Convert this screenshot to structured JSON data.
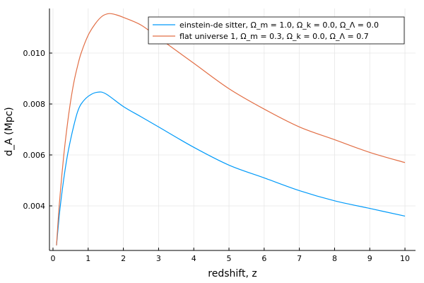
{
  "chart_data": {
    "type": "line",
    "title": "",
    "xlabel": "redshift, z",
    "ylabel": "d_A (Mpc)",
    "xlim": [
      -0.1,
      10.3
    ],
    "ylim": [
      0.00225,
      0.01175
    ],
    "xticks": [
      0,
      1,
      2,
      3,
      4,
      5,
      6,
      7,
      8,
      9,
      10
    ],
    "xtick_labels": [
      "0",
      "1",
      "2",
      "3",
      "4",
      "5",
      "6",
      "7",
      "8",
      "9",
      "10"
    ],
    "yticks": [
      0.004,
      0.006,
      0.008,
      0.01
    ],
    "ytick_labels": [
      "0.004",
      "0.006",
      "0.008",
      "0.010"
    ],
    "grid": true,
    "legend_position": "top-right",
    "series": [
      {
        "name": "einstein-de sitter, Ω_m = 1.0, Ω_k = 0.0, Ω_Λ = 0.0",
        "color": "#009af9",
        "x": [
          0.1,
          0.15,
          0.2,
          0.3,
          0.4,
          0.5,
          0.6,
          0.7,
          0.8,
          1.0,
          1.25,
          1.5,
          2.0,
          2.5,
          3.0,
          4.0,
          5.0,
          6.0,
          7.0,
          8.0,
          9.0,
          10.0
        ],
        "y": [
          0.00245,
          0.0032,
          0.0039,
          0.005,
          0.0059,
          0.0066,
          0.0072,
          0.0077,
          0.008,
          0.0083,
          0.00846,
          0.0084,
          0.0079,
          0.0075,
          0.0071,
          0.0063,
          0.0056,
          0.0051,
          0.0046,
          0.0042,
          0.0039,
          0.0036
        ]
      },
      {
        "name": "flat universe 1, Ω_m = 0.3, Ω_k = 0.0, Ω_Λ = 0.7",
        "color": "#e26f46",
        "x": [
          0.1,
          0.15,
          0.2,
          0.3,
          0.4,
          0.5,
          0.6,
          0.7,
          0.8,
          1.0,
          1.2,
          1.4,
          1.6,
          1.8,
          2.0,
          2.5,
          3.0,
          4.0,
          5.0,
          6.0,
          7.0,
          8.0,
          9.0,
          10.0
        ],
        "y": [
          0.00245,
          0.0035,
          0.0044,
          0.0059,
          0.0071,
          0.0081,
          0.0089,
          0.0095,
          0.01,
          0.0107,
          0.01115,
          0.01145,
          0.01155,
          0.0115,
          0.0114,
          0.0111,
          0.0106,
          0.0096,
          0.0086,
          0.0078,
          0.0071,
          0.0066,
          0.0061,
          0.0057
        ]
      }
    ]
  }
}
